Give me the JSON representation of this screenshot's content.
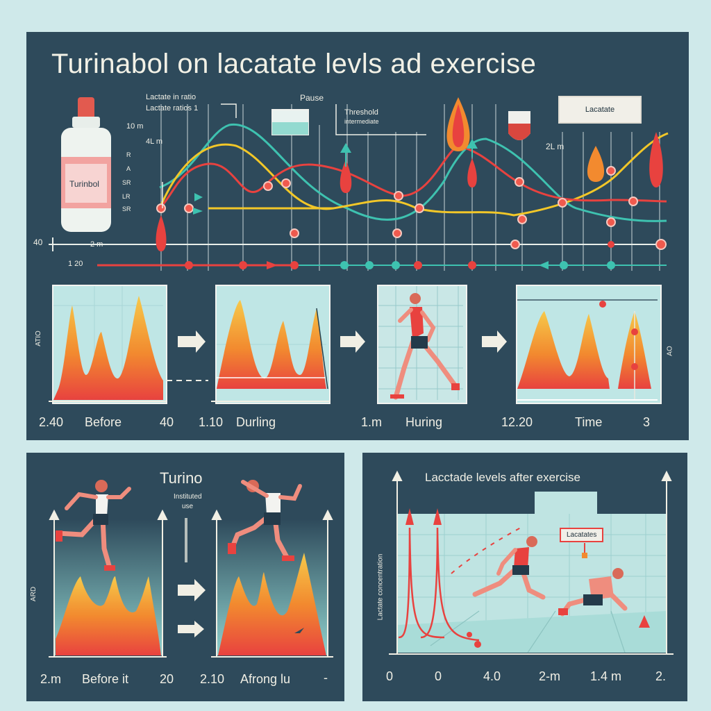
{
  "title": "Turinabol on lacatate levls ad exercise",
  "top_chart": {
    "note_left_1": "Lactate in ratio",
    "note_left_2": "Lactate ratios 1",
    "note_pause": "Pause",
    "note_threshold": "Threshold",
    "note_threshold_sub": "intermediate",
    "tag_lactate": "Lacatate",
    "bottle_label": "Turinbol",
    "axis_labels": [
      "10 m",
      "4L m",
      "40",
      "2 m",
      "1 20",
      "2L m"
    ],
    "tick_marks": [
      "R",
      "A",
      "SR",
      "LR",
      "SR"
    ],
    "colors": {
      "red": "#e8423f",
      "yellow": "#f2c728",
      "teal": "#3ec2b0",
      "orange": "#f28a2f"
    }
  },
  "steps": [
    {
      "left": "2.40",
      "label": "Before",
      "right": "40"
    },
    {
      "left": "1.10",
      "label": "Durling",
      "right": ""
    },
    {
      "left": "1.m",
      "label": "Huring",
      "right": ""
    },
    {
      "left": "12.20",
      "label": "Time",
      "right": "3"
    }
  ],
  "steps_side": {
    "left": "ATIO",
    "right": "AO"
  },
  "left_panel": {
    "title": "Turino",
    "sub_1": "Instituted",
    "sub_2": "use",
    "axis": "ARD",
    "bottom_left": "2.m",
    "bottom_label_1": "Before it",
    "bottom_mid": "20",
    "bottom_mid2": "2.10",
    "bottom_label_2": "Afrong lu",
    "bottom_right": "-"
  },
  "right_panel": {
    "title": "Lacctade levels after exercise",
    "tag": "Lacatates",
    "yaxis": "Lactate concentration",
    "xticks": [
      "0",
      "0",
      "4.0",
      "2-m",
      "1.4 m",
      "2."
    ]
  }
}
